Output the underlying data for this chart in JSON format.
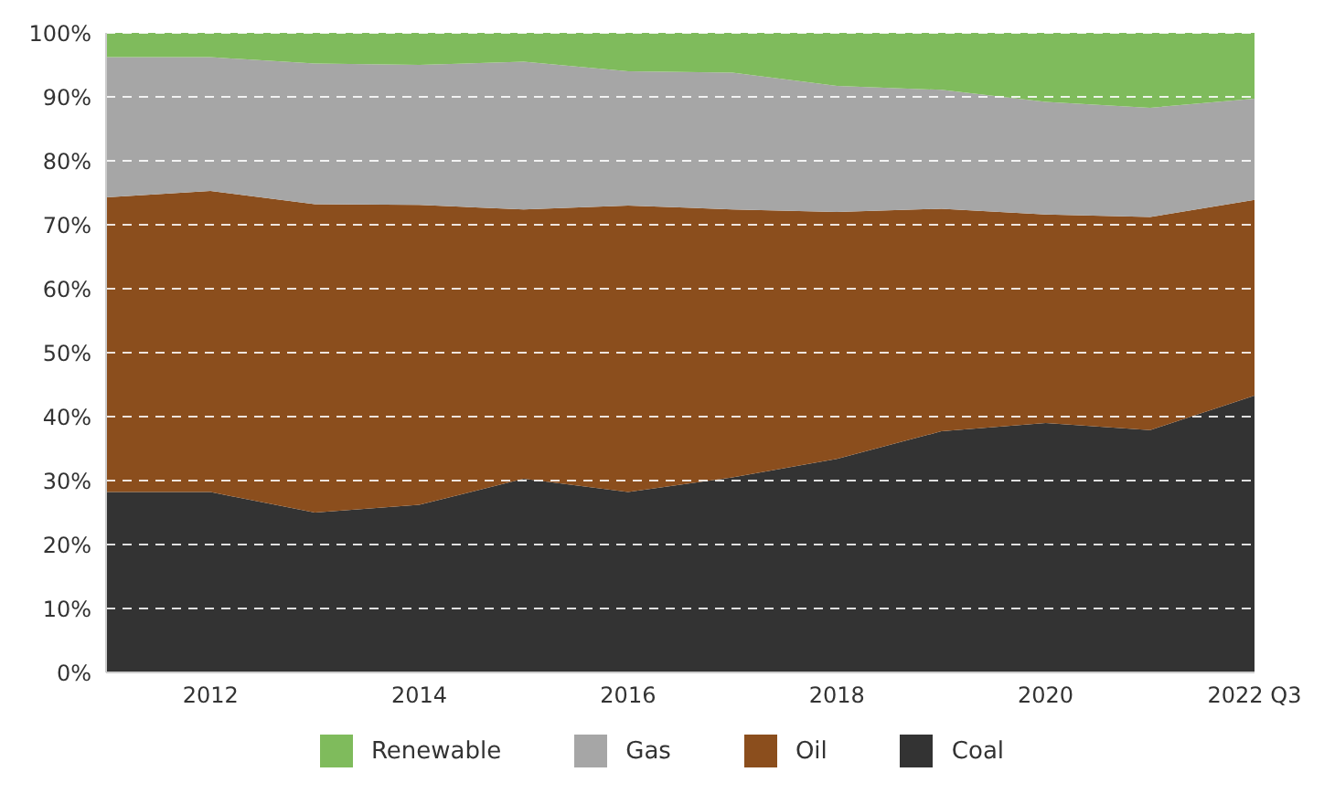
{
  "chart_data": {
    "type": "area",
    "stacked": true,
    "categories": [
      null,
      "2012",
      null,
      "2014",
      null,
      "2016",
      null,
      "2018",
      null,
      "2020",
      null,
      "2022 Q3"
    ],
    "series": [
      {
        "name": "Coal",
        "color": "#333333",
        "values": [
          28.2,
          28.2,
          25,
          26.2,
          30.3,
          28.2,
          30.5,
          33.4,
          37.7,
          39,
          37.9,
          43.3
        ]
      },
      {
        "name": "Oil",
        "color": "#8b4e1d",
        "values": [
          46.1,
          47.1,
          48.2,
          46.9,
          42.1,
          44.8,
          41.9,
          38.6,
          34.8,
          32.6,
          33.3,
          30.6
        ]
      },
      {
        "name": "Gas",
        "color": "#a6a6a6",
        "values": [
          21.9,
          20.9,
          22,
          21.9,
          23.1,
          21,
          21.4,
          19.7,
          18.6,
          17.6,
          17.1,
          15.8
        ]
      },
      {
        "name": "Renewable",
        "color": "#7fbb5c",
        "values": [
          3.8,
          3.8,
          4.8,
          5,
          4.5,
          6,
          6.2,
          8.3,
          8.9,
          10.8,
          11.7,
          10.3
        ]
      }
    ],
    "ylim": [
      0,
      100
    ],
    "yticks": [
      {
        "value": 0,
        "label": "0%"
      },
      {
        "value": 10,
        "label": "10%"
      },
      {
        "value": 20,
        "label": "20%"
      },
      {
        "value": 30,
        "label": "30%"
      },
      {
        "value": 40,
        "label": "40%"
      },
      {
        "value": 50,
        "label": "50%"
      },
      {
        "value": 60,
        "label": "60%"
      },
      {
        "value": 70,
        "label": "70%"
      },
      {
        "value": 80,
        "label": "80%"
      },
      {
        "value": 90,
        "label": "90%"
      },
      {
        "value": 100,
        "label": "100%"
      }
    ],
    "grid": "y",
    "legend": "bottom"
  }
}
